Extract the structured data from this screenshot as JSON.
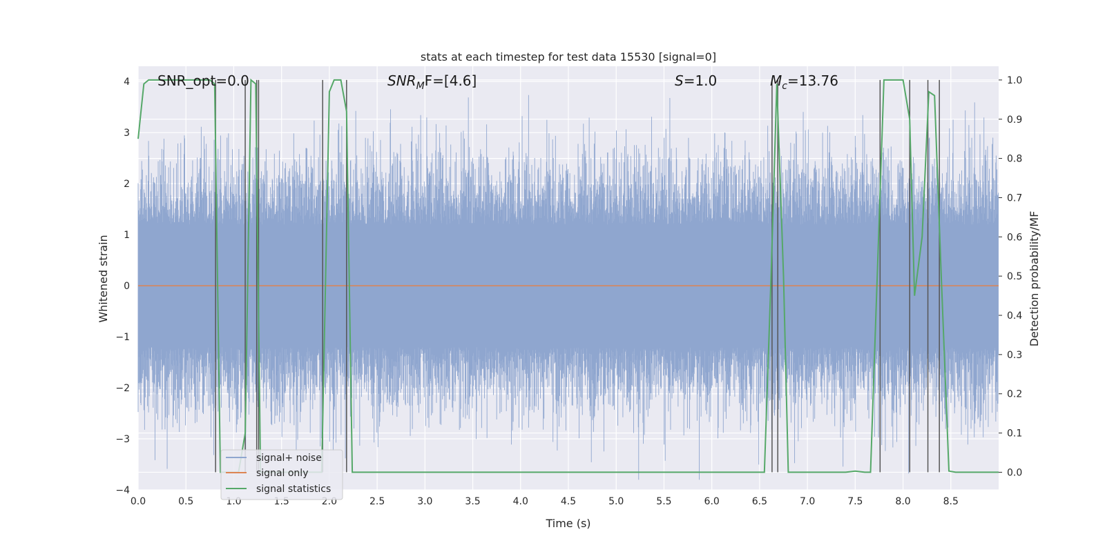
{
  "chart_data": {
    "type": "line",
    "title": "stats at each timestep for test data 15530 [signal=0]",
    "xlabel": "Time (s)",
    "ylabel_left": "Whitened strain",
    "ylabel_right": "Detection probability/MF",
    "xlim": [
      0.0,
      9.0
    ],
    "ylim_left": [
      -4.0,
      4.3
    ],
    "ylim_right": [
      -0.045,
      1.035
    ],
    "x_ticks": [
      "0.0",
      "0.5",
      "1.0",
      "1.5",
      "2.0",
      "2.5",
      "3.0",
      "3.5",
      "4.0",
      "4.5",
      "5.0",
      "5.5",
      "6.0",
      "6.5",
      "7.0",
      "7.5",
      "8.0",
      "8.5"
    ],
    "y_left_ticks": [
      "4",
      "3",
      "2",
      "1",
      "0",
      "−1",
      "−2",
      "−3",
      "−4"
    ],
    "y_right_ticks": [
      "1.0",
      "0.9",
      "0.8",
      "0.7",
      "0.6",
      "0.5",
      "0.4",
      "0.3",
      "0.2",
      "0.1",
      "0.0"
    ],
    "grid": true,
    "legend_position": "lower-left",
    "annotations": {
      "snr_opt": "SNR_opt=0.0",
      "snr_mf_main": "SNR",
      "snr_mf_sub": "M",
      "snr_mf_tail": "F=[4.6]",
      "s_main": "S",
      "s_tail": "=1.0",
      "mc_main": "M",
      "mc_sub": "c",
      "mc_tail": "=13.76"
    },
    "series": [
      {
        "name": "signal+ noise",
        "color": "#8fa6cf",
        "description_range": [
          -3.8,
          4.0
        ]
      },
      {
        "name": "signal only",
        "color": "#dd8452",
        "values_constant": 0.0
      },
      {
        "name": "signal statistics",
        "color": "#55a868",
        "x": [
          0.0,
          0.06,
          0.11,
          0.75,
          0.8,
          0.86,
          1.05,
          1.12,
          1.18,
          1.23,
          1.28,
          1.34,
          1.85,
          1.92,
          2.0,
          2.05,
          2.12,
          2.18,
          2.24,
          2.3,
          6.55,
          6.62,
          6.68,
          6.75,
          6.8,
          7.4,
          7.5,
          7.6,
          7.66,
          7.73,
          7.8,
          8.0,
          8.07,
          8.12,
          8.2,
          8.27,
          8.33,
          8.4,
          8.48,
          8.55,
          9.0
        ],
        "values": [
          0.85,
          0.99,
          1.0,
          1.0,
          0.99,
          0.0,
          0.0,
          0.1,
          1.0,
          0.99,
          0.0,
          0.0,
          0.0,
          0.0,
          0.97,
          1.0,
          1.0,
          0.92,
          0.0,
          0.0,
          0.0,
          0.5,
          0.99,
          0.5,
          0.0,
          0.0,
          0.003,
          0.0,
          0.0,
          0.5,
          1.0,
          1.0,
          0.9,
          0.45,
          0.6,
          0.97,
          0.96,
          0.5,
          0.003,
          0.0,
          0.0
        ]
      }
    ],
    "vertical_lines_x": [
      0.81,
      1.12,
      1.24,
      1.26,
      1.93,
      2.18,
      6.63,
      6.69,
      7.76,
      8.07,
      8.26,
      8.38
    ]
  }
}
